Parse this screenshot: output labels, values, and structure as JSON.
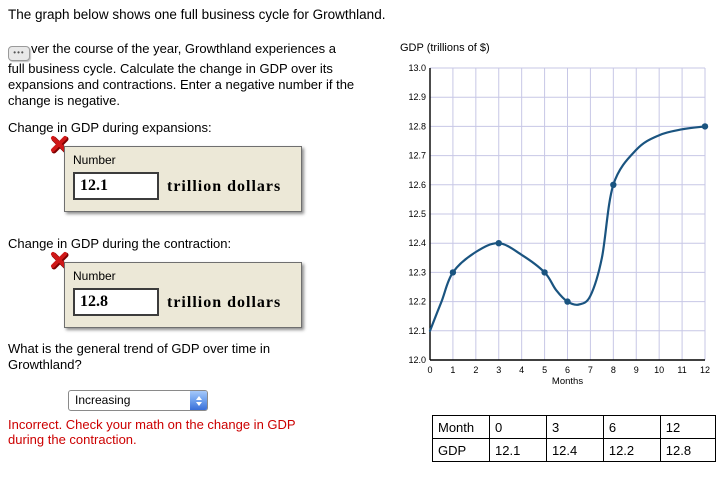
{
  "page_title": "The graph below shows one full business cycle for Growthland.",
  "question": {
    "intro_text": "ver the course of the year, Growthland experiences a full business cycle. Calculate the change in GDP over its expansions and contractions. Enter a negative number if the change is negative.",
    "expansions": {
      "label": "Change in GDP during expansions:",
      "field_label": "Number",
      "value": "12.1",
      "unit": "trillion dollars"
    },
    "contraction": {
      "label": "Change in GDP during the contraction:",
      "field_label": "Number",
      "value": "12.8",
      "unit": "trillion dollars"
    },
    "trend": {
      "label": "What is the general trend of GDP over time in Growthland?",
      "selected": "Increasing"
    },
    "feedback": "Incorrect. Check your math on the change in GDP during the contraction."
  },
  "colors": {
    "line": "#1a5480",
    "grid": "#c7c7e6",
    "error_red": "#cc0000",
    "box_beige": "#ece8d7"
  },
  "chart_data": {
    "type": "line",
    "title": "GDP (trillions of $)",
    "xlabel": "Months",
    "xlim": [
      0,
      12
    ],
    "ylim": [
      12.0,
      13.0
    ],
    "x_ticks": [
      0,
      1,
      2,
      3,
      4,
      5,
      6,
      7,
      8,
      9,
      10,
      11,
      12
    ],
    "y_ticks": [
      12.0,
      12.1,
      12.2,
      12.3,
      12.4,
      12.5,
      12.6,
      12.7,
      12.8,
      12.9,
      13.0
    ],
    "grid": true,
    "line_color": "#1a5480",
    "grid_color": "#c7c7e6",
    "key_points": {
      "months": [
        0,
        3,
        6,
        12
      ],
      "gdp": [
        12.1,
        12.4,
        12.2,
        12.8
      ]
    },
    "markers": [
      [
        1,
        12.3
      ],
      [
        3,
        12.4
      ],
      [
        5,
        12.3
      ],
      [
        6,
        12.2
      ],
      [
        8,
        12.6
      ],
      [
        12,
        12.8
      ]
    ],
    "curve": [
      [
        0,
        12.1
      ],
      [
        0.5,
        12.2
      ],
      [
        1,
        12.3
      ],
      [
        2,
        12.37
      ],
      [
        3,
        12.4
      ],
      [
        4,
        12.36
      ],
      [
        5,
        12.3
      ],
      [
        5.5,
        12.24
      ],
      [
        6,
        12.2
      ],
      [
        6.5,
        12.19
      ],
      [
        7,
        12.22
      ],
      [
        7.5,
        12.35
      ],
      [
        8,
        12.6
      ],
      [
        9,
        12.72
      ],
      [
        10,
        12.77
      ],
      [
        11,
        12.79
      ],
      [
        12,
        12.8
      ]
    ]
  },
  "table": {
    "header_row": [
      "Month",
      "0",
      "3",
      "6",
      "12"
    ],
    "gdp_row": [
      "GDP",
      "12.1",
      "12.4",
      "12.2",
      "12.8"
    ]
  }
}
